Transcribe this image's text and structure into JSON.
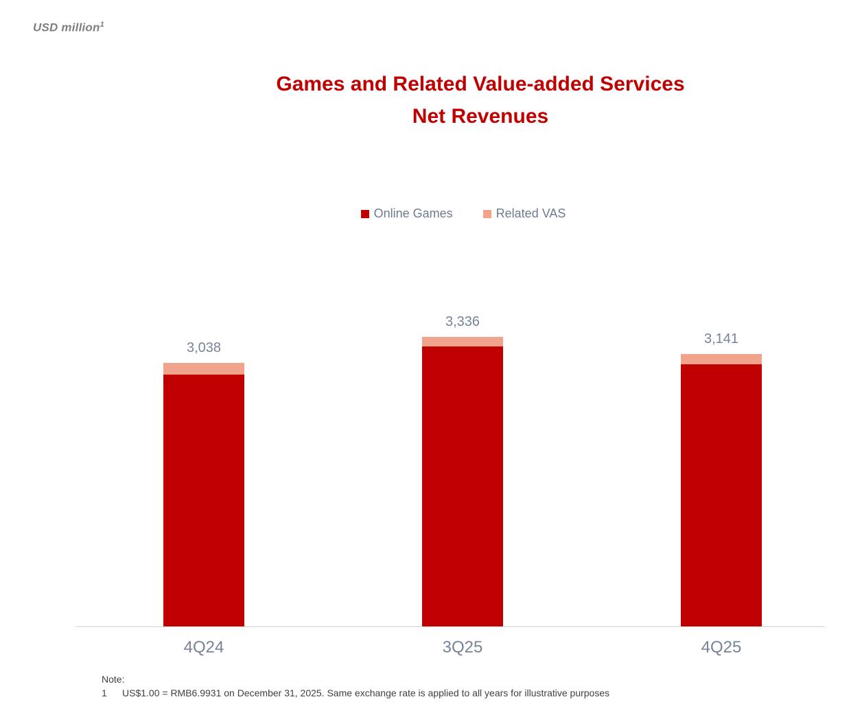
{
  "header": {
    "units": "USD million",
    "units_superscript": "1"
  },
  "chart_data": {
    "type": "bar",
    "stacked": true,
    "title": "Games and Related Value-added Services Net Revenues",
    "title_lines": [
      "Games and Related Value-added Services",
      "Net Revenues"
    ],
    "categories": [
      "4Q24",
      "3Q25",
      "4Q25"
    ],
    "series": [
      {
        "name": "Online Games",
        "color": "#c00000",
        "values": [
          2904,
          3225,
          3022
        ]
      },
      {
        "name": "Related VAS",
        "color": "#f2a38c",
        "values": [
          134,
          111,
          119
        ]
      }
    ],
    "totals": [
      "3,038",
      "3,336",
      "3,141"
    ],
    "total_values": [
      3038,
      3336,
      3141
    ],
    "xlabel": "",
    "ylabel": "",
    "ylim": [
      0,
      3500
    ],
    "grid": false,
    "legend_position": "top-center",
    "value_labels": "total above each stacked bar"
  },
  "note": {
    "label": "Note:",
    "number": "1",
    "text": "US$1.00 = RMB6.9931 on December 31, 2025. Same exchange rate is applied to all years for illustrative purposes"
  },
  "colors": {
    "title": "#c00000",
    "axis_label": "#77839a",
    "legend_label": "#6e7b8e",
    "note_text": "#404040",
    "axis_line": "#cdd1d6"
  }
}
